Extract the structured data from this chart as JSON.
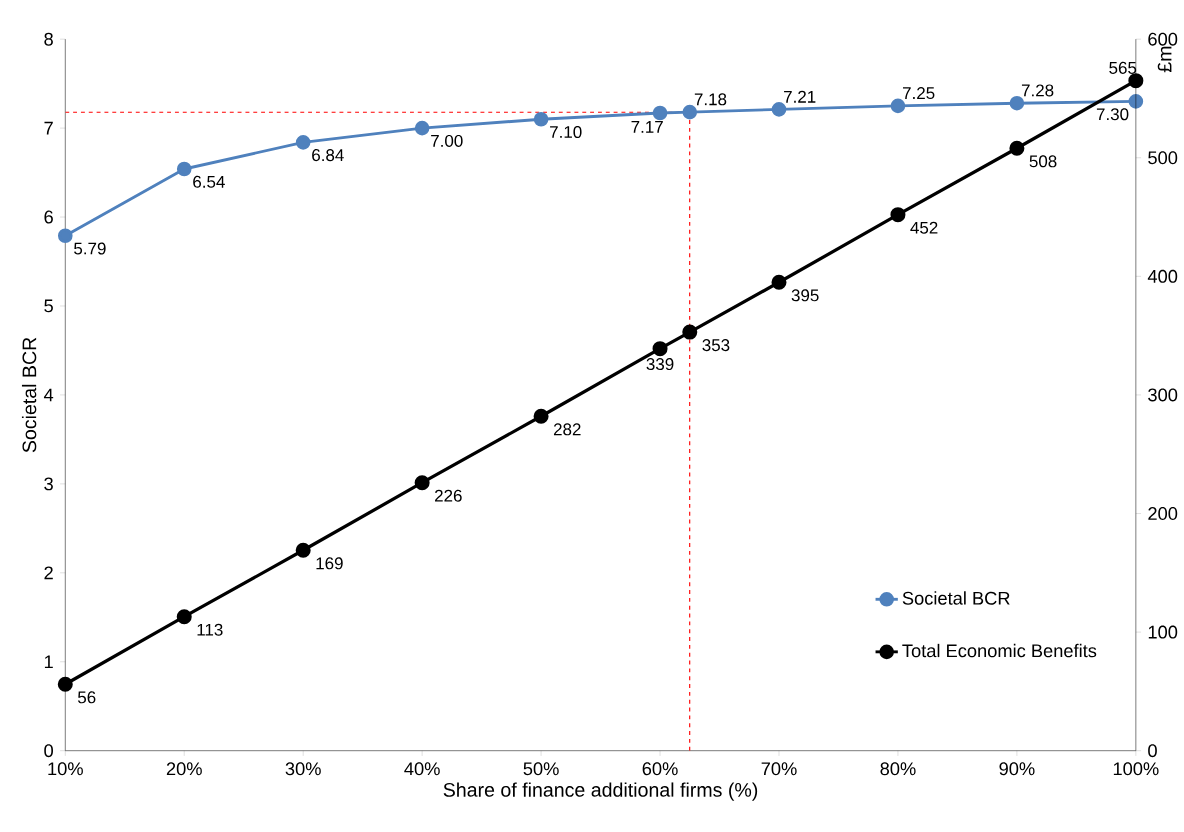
{
  "chart_data": {
    "type": "line",
    "xlabel": "Share of finance additional firms (%)",
    "ylabel": "Societal BCR",
    "y2label": "£m",
    "x": [
      10,
      20,
      30,
      40,
      50,
      60,
      62.5,
      70,
      80,
      90,
      100
    ],
    "series": [
      {
        "name": "Societal BCR",
        "color": "#4f81bd",
        "axis": "y",
        "values": [
          5.79,
          6.54,
          6.84,
          7.0,
          7.1,
          7.17,
          7.18,
          7.21,
          7.25,
          7.28,
          7.3
        ],
        "value_labels": [
          "5.79",
          "6.54",
          "6.84",
          "7.00",
          "7.10",
          "7.17",
          "7.18",
          "7.21",
          "7.25",
          "7.28",
          "7.30"
        ]
      },
      {
        "name": "Total Economic Benefits",
        "color": "#000000",
        "axis": "y2",
        "values": [
          56,
          113,
          169,
          226,
          282,
          339,
          353,
          395,
          452,
          508,
          565
        ],
        "value_labels": [
          "56",
          "113",
          "169",
          "226",
          "282",
          "339",
          "353",
          "395",
          "452",
          "508",
          "565"
        ]
      }
    ],
    "xlim": [
      10,
      100
    ],
    "xticks": [
      {
        "value": 10,
        "label": "10%"
      },
      {
        "value": 20,
        "label": "20%"
      },
      {
        "value": 30,
        "label": "30%"
      },
      {
        "value": 40,
        "label": "40%"
      },
      {
        "value": 50,
        "label": "50%"
      },
      {
        "value": 60,
        "label": "60%"
      },
      {
        "value": 70,
        "label": "70%"
      },
      {
        "value": 80,
        "label": "80%"
      },
      {
        "value": 90,
        "label": "90%"
      },
      {
        "value": 100,
        "label": "100%"
      }
    ],
    "ylim": [
      0,
      8
    ],
    "yticks": [
      0,
      1,
      2,
      3,
      4,
      5,
      6,
      7,
      8
    ],
    "y2lim": [
      0,
      600
    ],
    "y2ticks": [
      0,
      100,
      200,
      300,
      400,
      500,
      600
    ],
    "ref_lines": [
      {
        "axis": "y",
        "value": 7.18,
        "color": "#ff0000",
        "line_style": "dashed"
      },
      {
        "axis": "x",
        "value": 62.5,
        "color": "#ff0000",
        "line_style": "dashed"
      }
    ],
    "marker": "circle",
    "line_style": "solid",
    "grid": false,
    "legend": "bottom right"
  }
}
